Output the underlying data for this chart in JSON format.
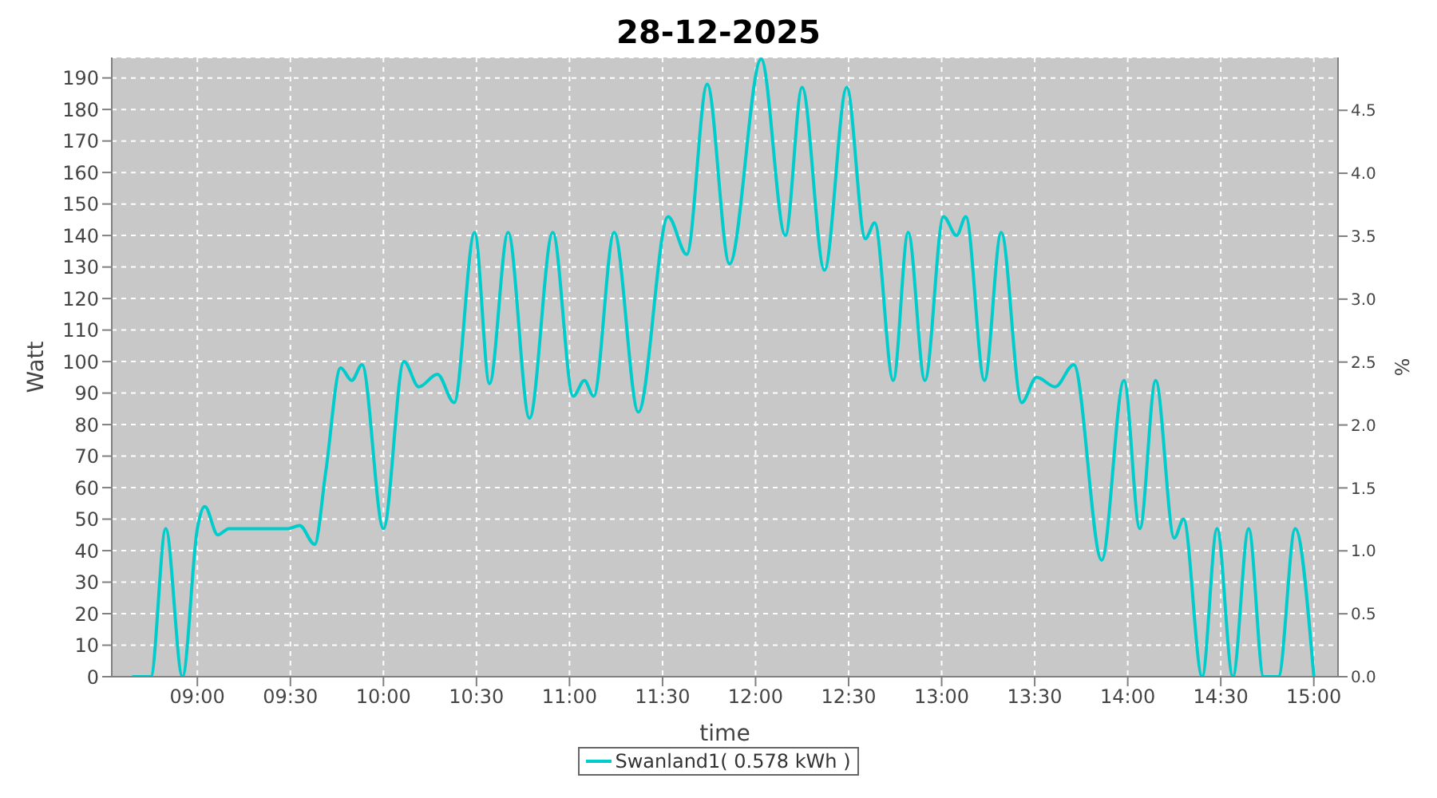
{
  "chart_data": {
    "type": "line",
    "title": "28-12-2025",
    "xlabel": "time",
    "ylabel": "Watt",
    "y2label": "%",
    "x": [
      8.65,
      8.75,
      8.83,
      8.92,
      9.0,
      9.04,
      9.11,
      9.17,
      9.49,
      9.55,
      9.63,
      9.69,
      9.77,
      9.83,
      9.885,
      10.0,
      10.11,
      10.19,
      10.29,
      10.38,
      10.49,
      10.57,
      10.67,
      10.785,
      10.91,
      11.02,
      11.08,
      11.13,
      11.24,
      11.37,
      11.53,
      11.63,
      11.74,
      11.86,
      12.03,
      12.16,
      12.25,
      12.37,
      12.49,
      12.59,
      12.64,
      12.74,
      12.82,
      12.91,
      13.01,
      13.08,
      13.13,
      13.23,
      13.32,
      13.43,
      13.51,
      13.61,
      13.71,
      13.86,
      13.98,
      14.065,
      14.15,
      14.25,
      14.3,
      14.4,
      14.48,
      14.565,
      14.65,
      14.73,
      14.81,
      14.9,
      15.0
    ],
    "series": [
      {
        "name": "Swanland1( 0.578 kWh )",
        "color": "#00cccc",
        "values": [
          0,
          0,
          47,
          0,
          47,
          54,
          45,
          47,
          47,
          48,
          42,
          65,
          98,
          94,
          99,
          47,
          100,
          92,
          96,
          87,
          141,
          93,
          141,
          82,
          141,
          89,
          94,
          89,
          141,
          84,
          146,
          134,
          188,
          131,
          196,
          140,
          187,
          129,
          187,
          139,
          144,
          94,
          141,
          94,
          146,
          140,
          146,
          94,
          141,
          87,
          95,
          92,
          99,
          37,
          94,
          47,
          94,
          44,
          50,
          0,
          47,
          0,
          47,
          0,
          0,
          47,
          0
        ]
      }
    ],
    "xlim": [
      8.54,
      15.13
    ],
    "xticks": [
      {
        "value": 9,
        "label": "09:00"
      },
      {
        "value": 9.5,
        "label": "09:30"
      },
      {
        "value": 10,
        "label": "10:00"
      },
      {
        "value": 10.5,
        "label": "10:30"
      },
      {
        "value": 11,
        "label": "11:00"
      },
      {
        "value": 11.5,
        "label": "11:30"
      },
      {
        "value": 12,
        "label": "12:00"
      },
      {
        "value": 12.5,
        "label": "12:30"
      },
      {
        "value": 13,
        "label": "13:00"
      },
      {
        "value": 13.5,
        "label": "13:30"
      },
      {
        "value": 14,
        "label": "14:00"
      },
      {
        "value": 14.5,
        "label": "14:30"
      },
      {
        "value": 15,
        "label": "15:00"
      }
    ],
    "ylim": [
      0,
      196.5
    ],
    "yticks": [
      0,
      10,
      20,
      30,
      40,
      50,
      60,
      70,
      80,
      90,
      100,
      110,
      120,
      130,
      140,
      150,
      160,
      170,
      180,
      190
    ],
    "y2lim": [
      0,
      4.92
    ],
    "y2ticks": [
      {
        "value": 0,
        "label": "0.0"
      },
      {
        "value": 0.5,
        "label": "0.5"
      },
      {
        "value": 1,
        "label": "1.0"
      },
      {
        "value": 1.5,
        "label": "1.5"
      },
      {
        "value": 2,
        "label": "2.0"
      },
      {
        "value": 2.5,
        "label": "2.5"
      },
      {
        "value": 3,
        "label": "3.0"
      },
      {
        "value": 3.5,
        "label": "3.5"
      },
      {
        "value": 4,
        "label": "4.0"
      },
      {
        "value": 4.5,
        "label": "4.5"
      }
    ],
    "grid": true,
    "legend": "bottom",
    "marker": "none",
    "line_style": "solid"
  }
}
